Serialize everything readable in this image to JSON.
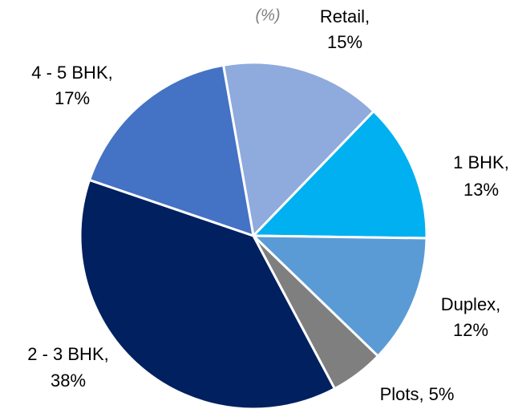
{
  "chart_data": {
    "type": "pie",
    "subtitle": "(%)",
    "categories": [
      "Retail,",
      "1 BHK,",
      "Duplex,",
      "Plots,",
      "2 - 3 BHK,",
      "4 - 5 BHK,"
    ],
    "values": [
      15,
      13,
      12,
      5,
      38,
      17
    ],
    "value_labels": [
      "15%",
      "13%",
      "12%",
      "5%",
      "38%",
      "17%"
    ],
    "colors": [
      "#8faadc",
      "#00b0f0",
      "#5b9bd5",
      "#7f7f7f",
      "#002060",
      "#4472c4"
    ]
  }
}
